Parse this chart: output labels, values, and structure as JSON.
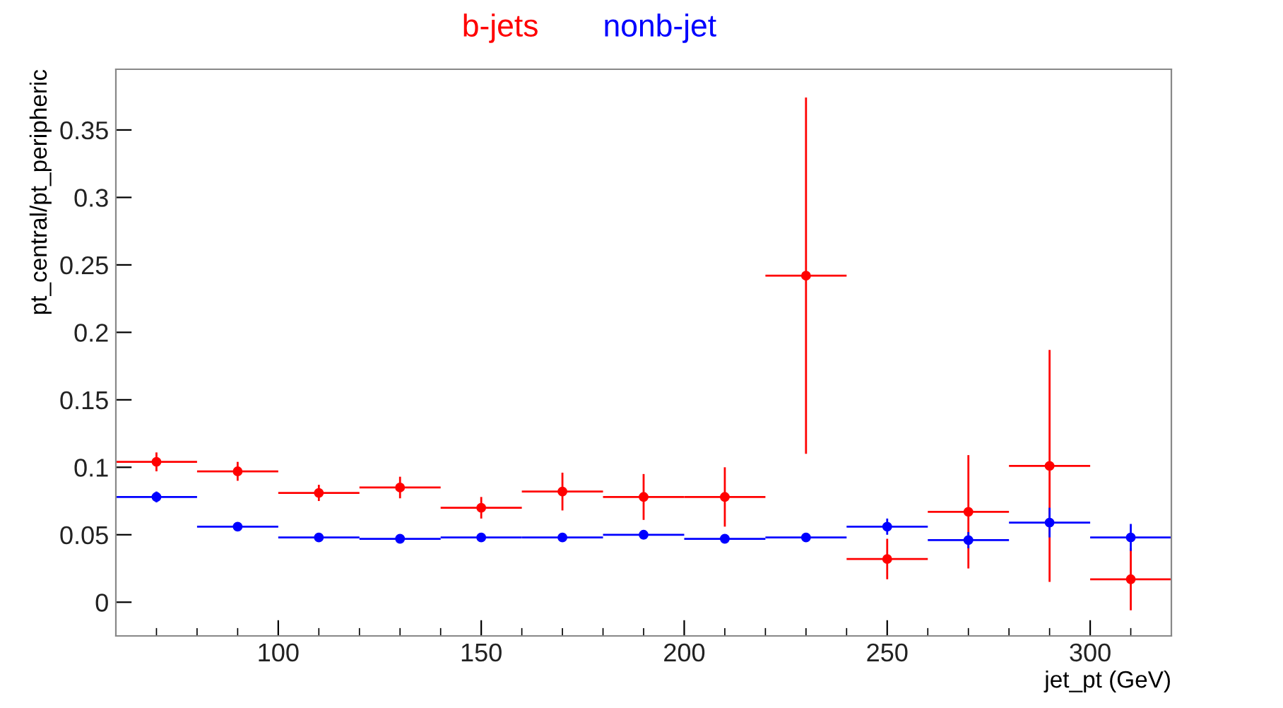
{
  "chart_data": {
    "type": "scatter",
    "xlabel": "jet_pt (GeV)",
    "ylabel": "pt_central/pt_peripheric",
    "x": [
      70,
      90,
      110,
      130,
      150,
      170,
      190,
      210,
      230,
      250,
      270,
      290,
      310
    ],
    "series": [
      {
        "name": "b-jets",
        "color": "#ff0000",
        "values": [
          0.104,
          0.097,
          0.081,
          0.085,
          0.07,
          0.082,
          0.078,
          0.078,
          0.242,
          0.032,
          0.067,
          0.101,
          0.017
        ],
        "errors": [
          0.007,
          0.007,
          0.006,
          0.008,
          0.008,
          0.014,
          0.017,
          0.022,
          0.132,
          0.015,
          0.042,
          0.086,
          0.023
        ],
        "xerrors": [
          10,
          10,
          10,
          10,
          10,
          10,
          10,
          10,
          10,
          10,
          10,
          10,
          10
        ]
      },
      {
        "name": "nonb-jet",
        "color": "#0000ff",
        "values": [
          0.078,
          0.056,
          0.048,
          0.047,
          0.048,
          0.048,
          0.05,
          0.047,
          0.048,
          0.056,
          0.046,
          0.059,
          0.048
        ],
        "errors": [
          0.004,
          0.003,
          0.003,
          0.003,
          0.003,
          0.003,
          0.003,
          0.003,
          0.003,
          0.006,
          0.006,
          0.011,
          0.01
        ],
        "xerrors": [
          10,
          10,
          10,
          10,
          10,
          10,
          10,
          10,
          10,
          10,
          10,
          10,
          10
        ]
      }
    ],
    "marker": "circle",
    "grid": false,
    "legend": false,
    "xlim": [
      60,
      320
    ],
    "ylim": [
      -0.025,
      0.395
    ],
    "xticks": [
      {
        "value": 70,
        "label": null
      },
      {
        "value": 80,
        "label": null
      },
      {
        "value": 90,
        "label": null
      },
      100,
      {
        "value": 110,
        "label": null
      },
      {
        "value": 120,
        "label": null
      },
      {
        "value": 130,
        "label": null
      },
      {
        "value": 140,
        "label": null
      },
      150,
      {
        "value": 160,
        "label": null
      },
      {
        "value": 170,
        "label": null
      },
      {
        "value": 180,
        "label": null
      },
      {
        "value": 190,
        "label": null
      },
      200,
      {
        "value": 210,
        "label": null
      },
      {
        "value": 220,
        "label": null
      },
      {
        "value": 230,
        "label": null
      },
      {
        "value": 240,
        "label": null
      },
      250,
      {
        "value": 260,
        "label": null
      },
      {
        "value": 270,
        "label": null
      },
      {
        "value": 280,
        "label": null
      },
      {
        "value": 290,
        "label": null
      },
      300,
      {
        "value": 310,
        "label": null
      }
    ],
    "yticks": [
      0,
      0.05,
      0.1,
      0.15,
      0.2,
      0.25,
      0.3,
      0.35
    ]
  }
}
